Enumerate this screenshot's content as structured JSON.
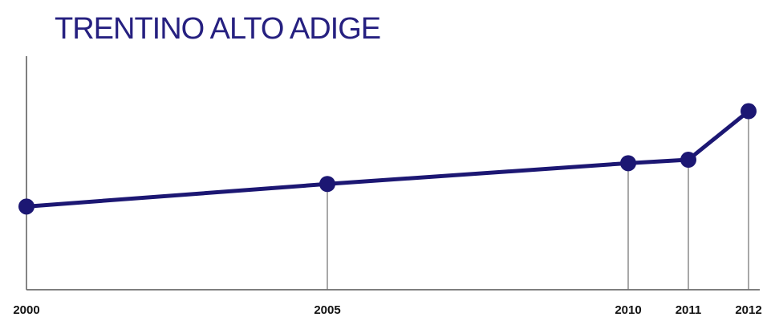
{
  "chart_data": {
    "type": "line",
    "title": "TRENTINO ALTO ADIGE",
    "xlabel": "",
    "ylabel": "",
    "x": [
      "2000",
      "2005",
      "2010",
      "2011",
      "2012"
    ],
    "x_numeric": [
      2000,
      2005,
      2010,
      2011,
      2012
    ],
    "series": [
      {
        "values": [
          24.0,
          30.5,
          36.5,
          37.5,
          51.5
        ]
      }
    ],
    "xlim": [
      2000,
      2012
    ],
    "ylim": [
      0,
      72
    ],
    "grid": false,
    "legend": "none",
    "show_y_ticks": false
  },
  "colors": {
    "title": "#262080",
    "line": "#1c1773",
    "axis": "#555555",
    "drop_lines": "#6e6e6e",
    "tick_text": "#111111"
  }
}
